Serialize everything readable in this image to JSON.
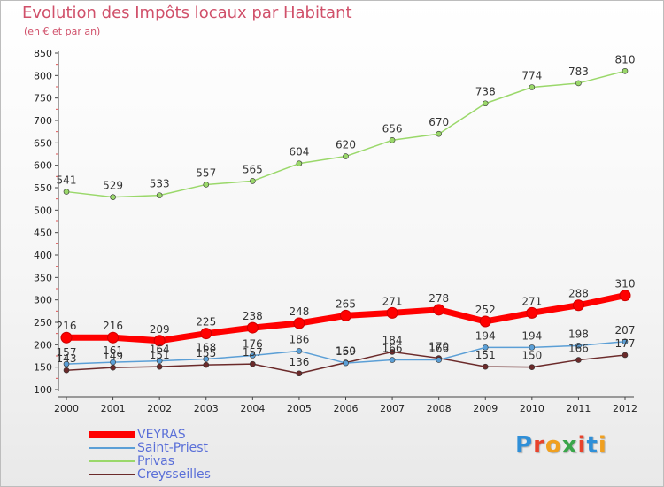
{
  "header": {
    "title": "Evolution des Impôts locaux par Habitant",
    "subtitle": "(en € et par an)"
  },
  "logo": {
    "text": "Proxiti",
    "letter_colors": [
      "#2f8fd8",
      "#e8432c",
      "#f0a020",
      "#3aa64a",
      "#e8432c",
      "#2f8fd8",
      "#f0a020"
    ]
  },
  "chart_data": {
    "type": "line",
    "title": "Evolution des Impôts locaux par Habitant",
    "subtitle": "(en € et par an)",
    "xlabel": "",
    "ylabel": "",
    "x": [
      "2000",
      "2001",
      "2002",
      "2003",
      "2004",
      "2005",
      "2006",
      "2007",
      "2008",
      "2009",
      "2010",
      "2011",
      "2012"
    ],
    "ylim": [
      100,
      850
    ],
    "yticks": [
      100,
      150,
      200,
      250,
      300,
      350,
      400,
      450,
      500,
      550,
      600,
      650,
      700,
      750,
      800,
      850
    ],
    "grid": false,
    "legend_position": "bottom-left",
    "series": [
      {
        "name": "VEYRAS",
        "color": "#ff0000",
        "values": [
          216,
          216,
          209,
          225,
          238,
          248,
          265,
          271,
          278,
          252,
          271,
          288,
          310
        ]
      },
      {
        "name": "Saint-Priest",
        "color": "#5b9fd6",
        "values": [
          157,
          161,
          164,
          168,
          176,
          186,
          159,
          166,
          166,
          194,
          194,
          198,
          207
        ]
      },
      {
        "name": "Privas",
        "color": "#9ad86a",
        "values": [
          541,
          529,
          533,
          557,
          565,
          604,
          620,
          656,
          670,
          738,
          774,
          783,
          810
        ]
      },
      {
        "name": "Creysseilles",
        "color": "#6b2a2a",
        "values": [
          143,
          149,
          151,
          155,
          157,
          136,
          160,
          184,
          170,
          151,
          150,
          166,
          177
        ]
      }
    ]
  }
}
